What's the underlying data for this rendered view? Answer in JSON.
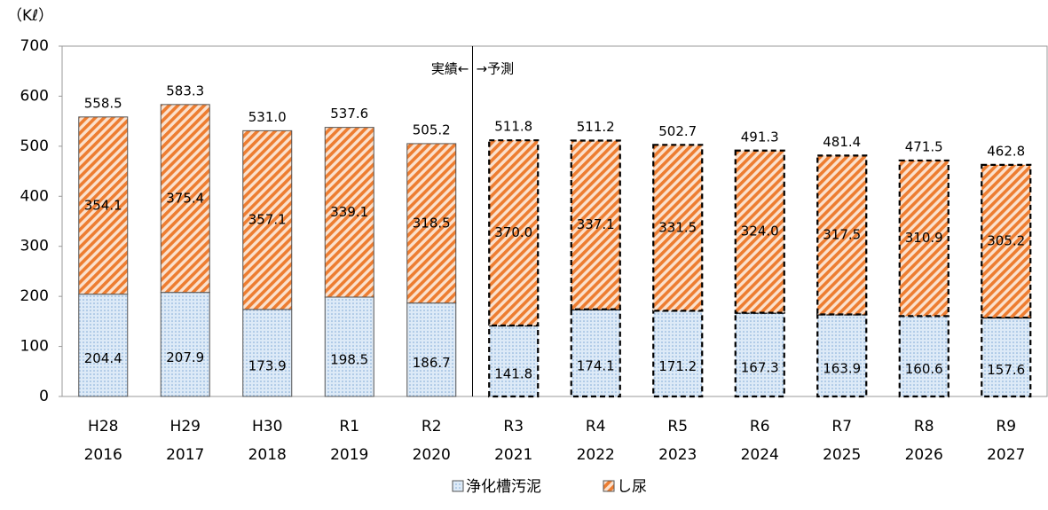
{
  "chart_data": {
    "type": "stacked_bar",
    "y_label": "（Kℓ）",
    "categories": [
      [
        "H28",
        "2016"
      ],
      [
        "H29",
        "2017"
      ],
      [
        "H30",
        "2018"
      ],
      [
        "R1",
        "2019"
      ],
      [
        "R2",
        "2020"
      ],
      [
        "R3",
        "2021"
      ],
      [
        "R4",
        "2022"
      ],
      [
        "R5",
        "2023"
      ],
      [
        "R6",
        "2024"
      ],
      [
        "R7",
        "2025"
      ],
      [
        "R8",
        "2026"
      ],
      [
        "R9",
        "2027"
      ]
    ],
    "series": [
      {
        "name": "浄化槽汚泥",
        "color": "#a9c8ea",
        "pattern": "dots",
        "values": [
          204.4,
          207.9,
          173.9,
          198.5,
          186.7,
          141.8,
          174.1,
          171.2,
          167.3,
          163.9,
          160.6,
          157.6
        ]
      },
      {
        "name": "し尿",
        "color": "#ed7d31",
        "pattern": "hatch",
        "values": [
          354.1,
          375.4,
          357.1,
          339.1,
          318.5,
          370,
          337.1,
          331.5,
          324,
          317.5,
          310.9,
          305.2
        ],
        "value_labels": [
          "354.1",
          "375.4",
          "357.1",
          "339.1",
          "318.5",
          "370.0",
          "337.1",
          "331.5",
          "324.0",
          "317.5",
          "310.9",
          "305.2"
        ]
      }
    ],
    "totals": [
      558.5,
      583.3,
      531,
      537.6,
      505.2,
      511.8,
      511.2,
      502.7,
      491.3,
      481.4,
      471.5,
      462.8
    ],
    "total_labels": [
      "558.5",
      "583.3",
      "531.0",
      "537.6",
      "505.2",
      "511.8",
      "511.2",
      "502.7",
      "491.3",
      "481.4",
      "471.5",
      "462.8"
    ],
    "dashed": [
      false,
      false,
      false,
      false,
      false,
      true,
      true,
      true,
      true,
      true,
      true,
      true
    ],
    "annotations": [
      "実績←",
      "→予測"
    ],
    "ylim": [
      0,
      700
    ],
    "yticks": [
      0,
      100,
      200,
      300,
      400,
      500,
      600,
      700
    ],
    "legend": "bottom"
  }
}
